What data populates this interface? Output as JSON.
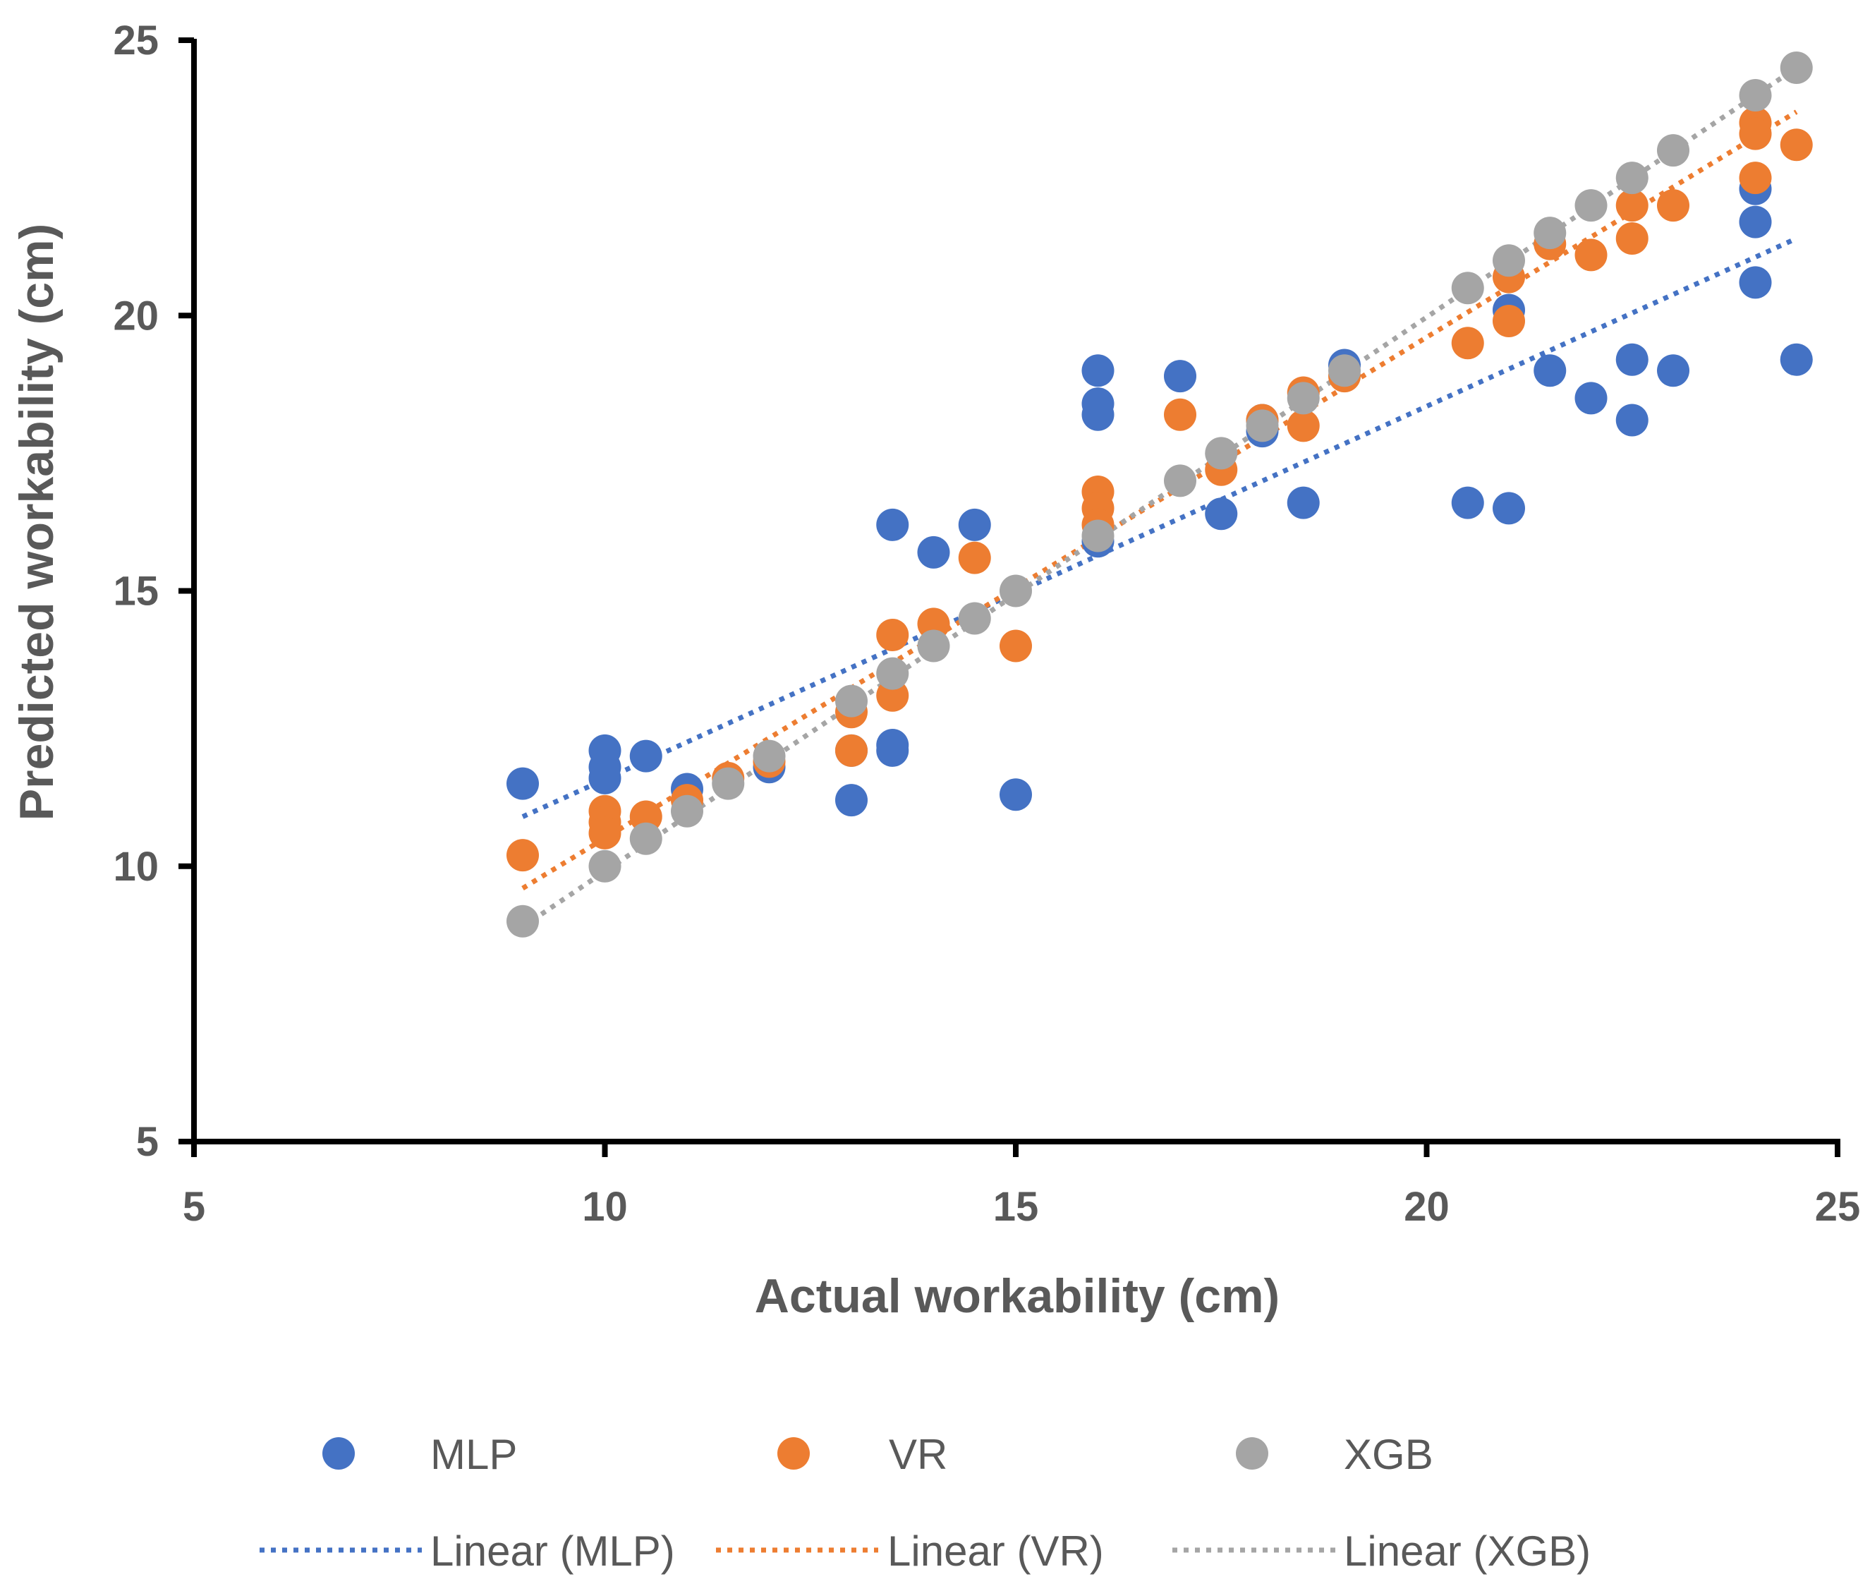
{
  "chart_data": {
    "type": "scatter",
    "title": "",
    "xlabel": "Actual workability (cm)",
    "ylabel": "Predicted workability (cm)",
    "xlim": [
      5,
      25
    ],
    "ylim": [
      5,
      25
    ],
    "xticks": [
      5,
      10,
      15,
      20,
      25
    ],
    "yticks": [
      5,
      10,
      15,
      20,
      25
    ],
    "grid": false,
    "legend_position": "bottom",
    "series": [
      {
        "name": "MLP",
        "color": "#4472C4",
        "trendline_label": "Linear (MLP)",
        "trendline": {
          "x": [
            9,
            24.5
          ],
          "y": [
            10.9,
            21.4
          ]
        },
        "points": [
          [
            9,
            11.5
          ],
          [
            10,
            12.1
          ],
          [
            10,
            11.8
          ],
          [
            10,
            11.6
          ],
          [
            10.5,
            12.0
          ],
          [
            11,
            11.4
          ],
          [
            12,
            11.8
          ],
          [
            13,
            12.1
          ],
          [
            13,
            11.2
          ],
          [
            13.5,
            16.2
          ],
          [
            13.5,
            12.2
          ],
          [
            13.5,
            12.1
          ],
          [
            14,
            15.7
          ],
          [
            14.5,
            16.2
          ],
          [
            15,
            11.3
          ],
          [
            16,
            19.0
          ],
          [
            16,
            18.4
          ],
          [
            16,
            18.2
          ],
          [
            16,
            15.9
          ],
          [
            17,
            18.9
          ],
          [
            17.5,
            16.4
          ],
          [
            18,
            18.1
          ],
          [
            18,
            17.9
          ],
          [
            18.5,
            16.6
          ],
          [
            19,
            19.1
          ],
          [
            20.5,
            16.6
          ],
          [
            21,
            20.1
          ],
          [
            21,
            16.5
          ],
          [
            21.5,
            19.0
          ],
          [
            22,
            18.5
          ],
          [
            22.5,
            19.2
          ],
          [
            22.5,
            18.1
          ],
          [
            23,
            19.0
          ],
          [
            24,
            22.3
          ],
          [
            24,
            21.7
          ],
          [
            24,
            20.6
          ],
          [
            24.5,
            19.2
          ]
        ]
      },
      {
        "name": "VR",
        "color": "#ED7D31",
        "trendline_label": "Linear (VR)",
        "trendline": {
          "x": [
            9,
            24.5
          ],
          "y": [
            9.6,
            23.7
          ]
        },
        "points": [
          [
            9,
            10.2
          ],
          [
            10,
            11.0
          ],
          [
            10,
            10.8
          ],
          [
            10,
            10.6
          ],
          [
            10.5,
            10.9
          ],
          [
            11,
            11.2
          ],
          [
            11.5,
            11.6
          ],
          [
            12,
            11.9
          ],
          [
            13,
            12.8
          ],
          [
            13,
            12.1
          ],
          [
            13.5,
            14.2
          ],
          [
            13.5,
            13.1
          ],
          [
            14,
            14.4
          ],
          [
            14.5,
            15.6
          ],
          [
            15,
            14.0
          ],
          [
            16,
            16.8
          ],
          [
            16,
            16.5
          ],
          [
            16,
            16.2
          ],
          [
            17,
            18.2
          ],
          [
            17.5,
            17.2
          ],
          [
            18,
            18.1
          ],
          [
            18.5,
            18.6
          ],
          [
            18.5,
            18.0
          ],
          [
            19,
            18.9
          ],
          [
            20.5,
            19.5
          ],
          [
            21,
            20.7
          ],
          [
            21,
            19.9
          ],
          [
            21.5,
            21.3
          ],
          [
            22,
            21.1
          ],
          [
            22.5,
            22.0
          ],
          [
            22.5,
            21.4
          ],
          [
            23,
            22.0
          ],
          [
            24,
            23.5
          ],
          [
            24,
            23.3
          ],
          [
            24,
            22.5
          ],
          [
            24.5,
            23.1
          ]
        ]
      },
      {
        "name": "XGB",
        "color": "#A5A5A5",
        "trendline_label": "Linear (XGB)",
        "trendline": {
          "x": [
            9,
            24.5
          ],
          "y": [
            8.9,
            24.5
          ]
        },
        "points": [
          [
            9,
            9.0
          ],
          [
            10,
            10.0
          ],
          [
            10.5,
            10.5
          ],
          [
            11,
            11.0
          ],
          [
            11.5,
            11.5
          ],
          [
            12,
            12.0
          ],
          [
            13,
            13.0
          ],
          [
            13.5,
            13.5
          ],
          [
            14,
            14.0
          ],
          [
            14.5,
            14.5
          ],
          [
            15,
            15.0
          ],
          [
            16,
            16.0
          ],
          [
            17,
            17.0
          ],
          [
            17.5,
            17.5
          ],
          [
            18,
            18.0
          ],
          [
            18.5,
            18.5
          ],
          [
            19,
            19.0
          ],
          [
            20.5,
            20.5
          ],
          [
            21,
            21.0
          ],
          [
            21.5,
            21.5
          ],
          [
            22,
            22.0
          ],
          [
            22.5,
            22.5
          ],
          [
            23,
            23.0
          ],
          [
            24,
            24.0
          ],
          [
            24.5,
            24.5
          ]
        ]
      }
    ]
  }
}
